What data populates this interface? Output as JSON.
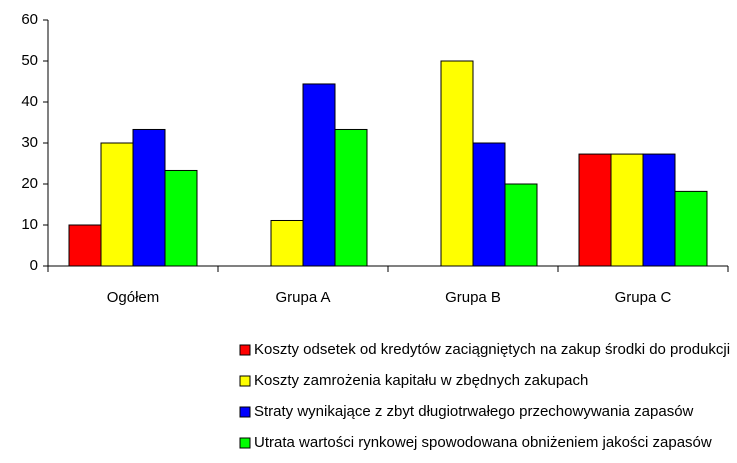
{
  "chart_data": {
    "type": "bar",
    "categories": [
      "Ogółem",
      "Grupa A",
      "Grupa B",
      "Grupa C"
    ],
    "series": [
      {
        "name": "Koszty odsetek od kredytów zaciągniętych na zakup środki do produkcji",
        "color": "#ff0000",
        "values": [
          10,
          0,
          0,
          27.3
        ]
      },
      {
        "name": "Koszty zamrożenia kapitału w zbędnych zakupach",
        "color": "#ffff00",
        "values": [
          30,
          11.1,
          50,
          27.3
        ]
      },
      {
        "name": "Straty wynikające z zbyt długiotrwałego przechowywania zapasów",
        "color": "#0000ff",
        "values": [
          33.3,
          44.4,
          30,
          27.3
        ]
      },
      {
        "name": "Utrata wartości rynkowej spowodowana obniżeniem jakości zapasów",
        "color": "#00ff00",
        "values": [
          23.3,
          33.3,
          20,
          18.2
        ]
      }
    ],
    "ylim": [
      0,
      60
    ],
    "yticks": [
      0,
      10,
      20,
      30,
      40,
      50,
      60
    ],
    "grid": false,
    "legend": "bottom"
  }
}
